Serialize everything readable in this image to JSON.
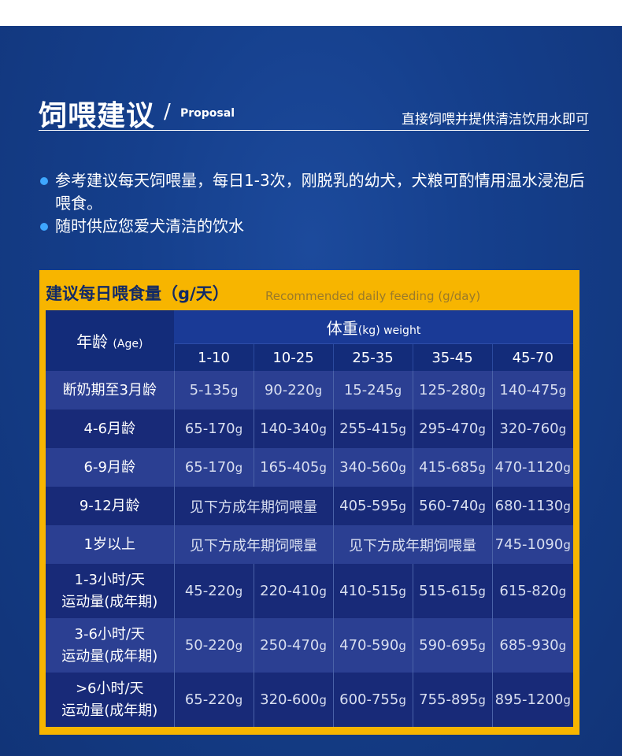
{
  "header": {
    "title": "饲喂建议",
    "slash": "/",
    "subtitle_en": "Proposal",
    "right_text": "直接饲喂并提供清洁饮用水即可"
  },
  "bullets": [
    "参考建议每天饲喂量，每日1-3次，刚脱乳的幼犬，犬粮可酌情用温水浸泡后喂食。",
    "随时供应您爱犬清洁的饮水"
  ],
  "panel": {
    "title": "建议每日喂食量（g/天）",
    "subtitle": "Recommended daily feeding (g/day)"
  },
  "table": {
    "age_header": "年龄",
    "age_header_en": "(Age)",
    "weight_header": "体重",
    "weight_header_unit": "(kg) weight",
    "ranges": [
      "1-10",
      "10-25",
      "25-35",
      "35-45",
      "45-70"
    ],
    "rows": [
      {
        "age": "断奶期至3月龄",
        "values": [
          "5-135",
          "90-220",
          "15-245",
          "125-280",
          "140-475"
        ]
      },
      {
        "age": "4-6月龄",
        "values": [
          "65-170",
          "140-340",
          "255-415",
          "295-470",
          "320-760"
        ]
      },
      {
        "age": "6-9月龄",
        "values": [
          "65-170",
          "165-405",
          "340-560",
          "415-685",
          "470-1120"
        ]
      },
      {
        "age": "9-12月龄",
        "merged": "见下方成年期饲喂量",
        "values": [
          "405-595",
          "560-740",
          "680-1130"
        ]
      },
      {
        "age": "1岁以上",
        "merged": "见下方成年期饲喂量",
        "merged2": "见下方成年期饲喂量",
        "values": [
          "745-1090"
        ]
      },
      {
        "age_line1": "1-3小时/天",
        "age_line2": "运动量(成年期)",
        "values": [
          "45-220",
          "220-410",
          "410-515",
          "515-615",
          "615-820"
        ]
      },
      {
        "age_line1": "3-6小时/天",
        "age_line2": "运动量(成年期)",
        "values": [
          "50-220",
          "250-470",
          "470-590",
          "590-695",
          "685-930"
        ]
      },
      {
        "age_line1": ">6小时/天",
        "age_line2": "运动量(成年期)",
        "values": [
          "65-220",
          "320-600",
          "600-755",
          "755-895",
          "895-1200"
        ]
      }
    ],
    "unit": "g"
  }
}
